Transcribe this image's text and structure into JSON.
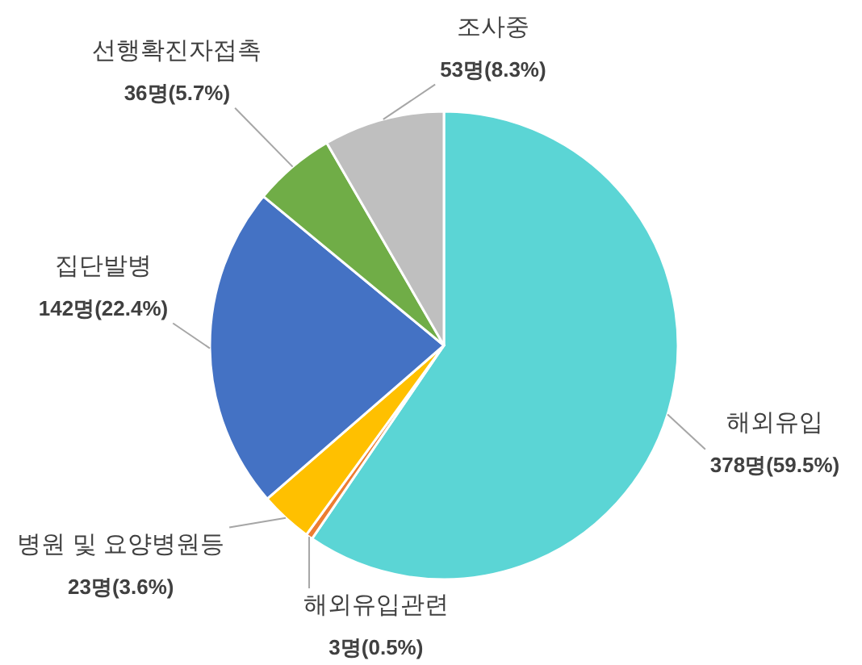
{
  "chart_data": {
    "type": "pie",
    "categories": [
      "해외유입",
      "해외유입관련",
      "병원 및 요양병원등",
      "집단발병",
      "선행확진자접촉",
      "조사중"
    ],
    "values": [
      378,
      3,
      23,
      142,
      36,
      53
    ],
    "colors": [
      "#5bd5d5",
      "#ed7d31",
      "#ffc000",
      "#4472c4",
      "#70ad47",
      "#bfbfbf"
    ],
    "value_labels": [
      "378명(59.5%)",
      "3명(0.5%)",
      "23명(3.6%)",
      "142명(22.4%)",
      "36명(5.7%)",
      "53명(8.3%)"
    ]
  }
}
